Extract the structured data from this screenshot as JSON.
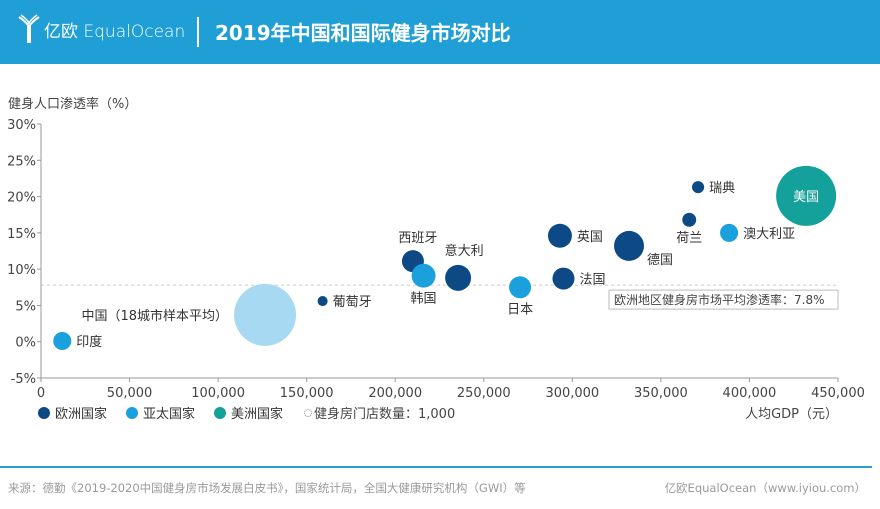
{
  "header": {
    "logo_text": "亿欧 EqualOcean",
    "title": "2019年中国和国际健身市场对比"
  },
  "colors": {
    "header": "#1f9fd5",
    "europe": "#0d4a85",
    "asia": "#1aa0dd",
    "americas": "#14a19b",
    "china": "#a8d9f3"
  },
  "chart_data": {
    "type": "scatter",
    "ylabel": "健身人口渗透率（%）",
    "xlabel": "人均GDP（元）",
    "xlim": [
      0,
      450000
    ],
    "ylim": [
      -5,
      30
    ],
    "xticks": [
      "0",
      "50,000",
      "100,000",
      "150,000",
      "200,000",
      "250,000",
      "300,000",
      "350,000",
      "400,000",
      "450,000"
    ],
    "yticks": [
      "30%",
      "25%",
      "20%",
      "15%",
      "10%",
      "5%",
      "0%",
      "-5%"
    ],
    "legend": [
      {
        "key": "europe",
        "label": "欧洲国家"
      },
      {
        "key": "asia",
        "label": "亚太国家"
      },
      {
        "key": "americas",
        "label": "美洲国家"
      }
    ],
    "size_legend": "健身房门店数量：1,000",
    "reference_line": {
      "y": 7.8,
      "label": "欧洲地区健身房市场平均渗透率：7.8%"
    },
    "points": [
      {
        "name": "印度",
        "x": 12000,
        "y": 0.1,
        "stores": 4200,
        "group": "asia",
        "label_pos": "right"
      },
      {
        "name": "中国（18城市样本平均）",
        "x": 126500,
        "y": 3.7,
        "stores": 49600,
        "group": "china",
        "label_pos": "left"
      },
      {
        "name": "葡萄牙",
        "x": 159000,
        "y": 5.6,
        "stores": 1300,
        "group": "europe",
        "label_pos": "right"
      },
      {
        "name": "西班牙",
        "x": 210000,
        "y": 11.1,
        "stores": 6250,
        "group": "europe",
        "label_pos": "top"
      },
      {
        "name": "韩国",
        "x": 216000,
        "y": 9.1,
        "stores": 7400,
        "group": "asia",
        "label_pos": "bottom"
      },
      {
        "name": "意大利",
        "x": 235500,
        "y": 8.8,
        "stores": 8700,
        "group": "europe",
        "label_pos": "topright"
      },
      {
        "name": "日本",
        "x": 270500,
        "y": 7.5,
        "stores": 6250,
        "group": "asia",
        "label_pos": "bottom"
      },
      {
        "name": "英国",
        "x": 293000,
        "y": 14.6,
        "stores": 7400,
        "group": "europe",
        "label_pos": "right"
      },
      {
        "name": "法国",
        "x": 295000,
        "y": 8.7,
        "stores": 6250,
        "group": "europe",
        "label_pos": "right"
      },
      {
        "name": "德国",
        "x": 332000,
        "y": 13.2,
        "stores": 11600,
        "group": "europe",
        "label_pos": "bottomright"
      },
      {
        "name": "荷兰",
        "x": 366000,
        "y": 16.8,
        "stores": 2500,
        "group": "europe",
        "label_pos": "bottom"
      },
      {
        "name": "瑞典",
        "x": 371000,
        "y": 21.3,
        "stores": 1900,
        "group": "europe",
        "label_pos": "right"
      },
      {
        "name": "澳大利亚",
        "x": 388500,
        "y": 15.0,
        "stores": 4200,
        "group": "asia",
        "label_pos": "right"
      },
      {
        "name": "美国",
        "x": 432000,
        "y": 20.1,
        "stores": 46500,
        "group": "americas",
        "label_pos": "inside"
      }
    ]
  },
  "footer": {
    "source": "来源：德勤《2019-2020中国健身房市场发展白皮书》，国家统计局，全国大健康研究机构（GWI）等",
    "credit": "亿欧EqualOcean（www.iyiou.com）"
  }
}
